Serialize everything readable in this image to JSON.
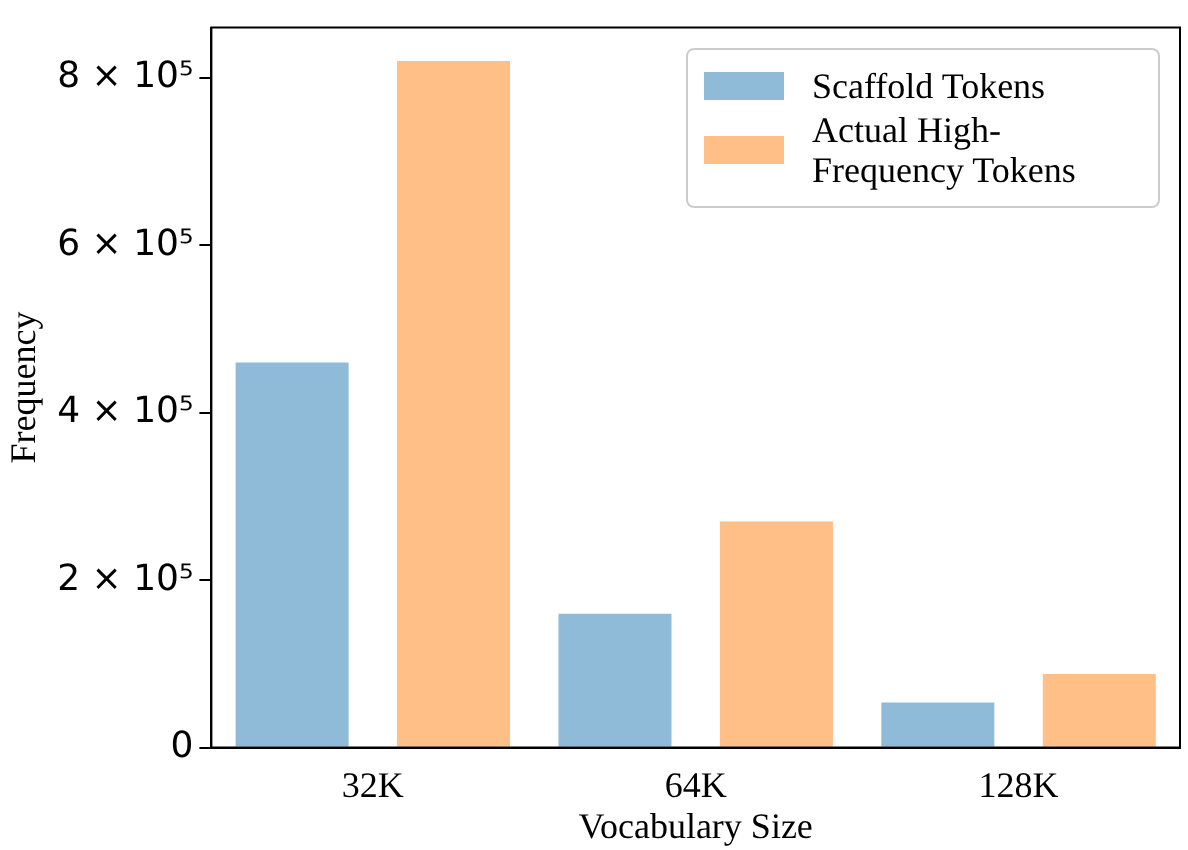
{
  "chart_data": {
    "type": "bar",
    "xlabel": "Vocabulary Size",
    "ylabel": "Frequency",
    "categories": [
      "32K",
      "64K",
      "128K"
    ],
    "series": [
      {
        "name": "Scaffold Tokens",
        "color": "#8fbbd9",
        "values": [
          460000,
          160000,
          54000
        ]
      },
      {
        "name": "Actual High-Frequency Tokens",
        "color": "#ffbf86",
        "values": [
          820000,
          270000,
          88000
        ]
      }
    ],
    "ylim": [
      0,
      860000
    ],
    "yticks": [
      0,
      {
        "value": 200000,
        "label": "2 × 10⁵"
      },
      {
        "value": 400000,
        "label": "4 × 10⁵"
      },
      {
        "value": 600000,
        "label": "6 × 10⁵"
      },
      {
        "value": 800000,
        "label": "8 × 10⁵"
      }
    ],
    "grid": false,
    "legend": "top right"
  }
}
